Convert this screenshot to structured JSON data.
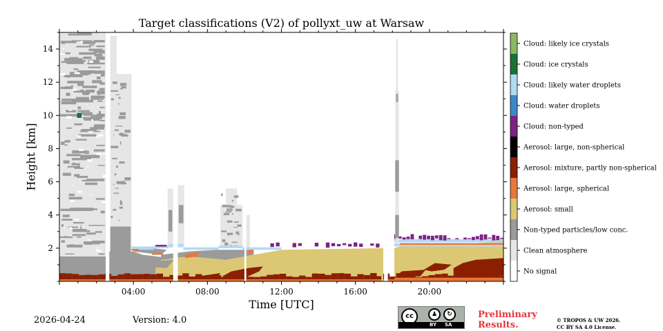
{
  "chart_data": {
    "type": "heatmap",
    "title": "Target classifications (V2) of pollyxt_uw at Warsaw",
    "xlabel": "Time [UTC]",
    "ylabel": "Height [km]",
    "xlim_hours": [
      0,
      24
    ],
    "ylim_km": [
      0,
      15
    ],
    "x_ticks": [
      {
        "v": 4,
        "label": "04:00"
      },
      {
        "v": 8,
        "label": "08:00"
      },
      {
        "v": 12,
        "label": "12:00"
      },
      {
        "v": 16,
        "label": "16:00"
      },
      {
        "v": 20,
        "label": "20:00"
      }
    ],
    "y_ticks": [
      {
        "v": 2,
        "label": "2"
      },
      {
        "v": 4,
        "label": "4"
      },
      {
        "v": 6,
        "label": "6"
      },
      {
        "v": 8,
        "label": "8"
      },
      {
        "v": 10,
        "label": "10"
      },
      {
        "v": 12,
        "label": "12"
      },
      {
        "v": 14,
        "label": "14"
      }
    ],
    "classes": [
      {
        "label": "No signal",
        "color": "#ffffff"
      },
      {
        "label": "Clean atmosphere",
        "color": "#e6e6e6"
      },
      {
        "label": "Non-typed particles/low conc.",
        "color": "#9b9b9b"
      },
      {
        "label": "Aerosol: small",
        "color": "#dcc874"
      },
      {
        "label": "Aerosol: large, spherical",
        "color": "#e8783c"
      },
      {
        "label": "Aerosol: mixture, partly non-spherical",
        "color": "#8b2000"
      },
      {
        "label": "Aerosol: large, non-spherical",
        "color": "#000000"
      },
      {
        "label": "Cloud: non-typed",
        "color": "#7b2485"
      },
      {
        "label": "Cloud: water droplets",
        "color": "#3e87c6"
      },
      {
        "label": "Cloud: likely water droplets",
        "color": "#b3d9f2"
      },
      {
        "label": "Cloud: ice crystals",
        "color": "#1b7137"
      },
      {
        "label": "Cloud: likely ice crystals",
        "color": "#8ab864"
      }
    ]
  },
  "footer": {
    "date": "2026-04-24",
    "version": "Version: 4.0",
    "preliminary_line1": "Preliminary",
    "preliminary_line2": "Results.",
    "copyright_line1": "© TROPOS & UW 2026.",
    "copyright_line2": "CC BY SA 4.0 License.",
    "license_badge": {
      "cc": "cc",
      "by": "BY",
      "sa": "SA"
    }
  }
}
